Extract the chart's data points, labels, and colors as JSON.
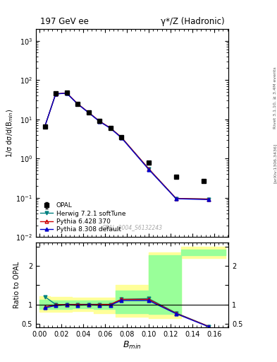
{
  "title_left": "197 GeV ee",
  "title_right": "γ*/Z (Hadronic)",
  "xlabel": "$B_{min}$",
  "ylabel_main": "1/σ dσ/d(B$_{min}$)",
  "ylabel_ratio": "Ratio to OPAL",
  "watermark": "OPAL_2004_S6132243",
  "right_label": "Rivet 3.1.10, ≥ 3.4M events",
  "right_label2": "[arXiv:1306.3436]",
  "opal_x": [
    0.005,
    0.015,
    0.025,
    0.035,
    0.045,
    0.055,
    0.065,
    0.075,
    0.1,
    0.125,
    0.15
  ],
  "opal_y": [
    6.5,
    45.0,
    47.0,
    25.0,
    15.0,
    9.0,
    6.0,
    3.5,
    0.8,
    0.35,
    0.27
  ],
  "opal_yerr": [
    0.4,
    2.0,
    2.0,
    1.5,
    0.8,
    0.5,
    0.3,
    0.2,
    0.06,
    0.03,
    0.02
  ],
  "herwig_x": [
    0.005,
    0.015,
    0.025,
    0.035,
    0.045,
    0.055,
    0.065,
    0.075,
    0.1,
    0.125,
    0.155
  ],
  "herwig_y": [
    6.5,
    44.5,
    46.5,
    25.0,
    15.0,
    9.0,
    6.0,
    3.5,
    0.55,
    0.097,
    0.093
  ],
  "pythia6_x": [
    0.005,
    0.015,
    0.025,
    0.035,
    0.045,
    0.055,
    0.065,
    0.075,
    0.1,
    0.125,
    0.155
  ],
  "pythia6_y": [
    6.5,
    44.5,
    47.0,
    25.0,
    15.0,
    9.0,
    6.0,
    3.5,
    0.55,
    0.097,
    0.093
  ],
  "pythia8_x": [
    0.005,
    0.015,
    0.025,
    0.035,
    0.045,
    0.055,
    0.065,
    0.075,
    0.1,
    0.125,
    0.155
  ],
  "pythia8_y": [
    6.5,
    44.0,
    46.5,
    24.5,
    14.8,
    8.8,
    5.9,
    3.4,
    0.53,
    0.095,
    0.09
  ],
  "ratio_x": [
    0.005,
    0.015,
    0.025,
    0.035,
    0.045,
    0.055,
    0.065,
    0.075,
    0.1,
    0.125,
    0.155
  ],
  "herwig_ratio": [
    1.2,
    1.0,
    0.99,
    1.0,
    1.0,
    1.0,
    1.0,
    1.13,
    1.15,
    0.78,
    0.43
  ],
  "pythia6_ratio": [
    0.93,
    0.99,
    1.0,
    1.0,
    1.0,
    1.0,
    1.0,
    1.13,
    1.13,
    0.77,
    0.43
  ],
  "pythia8_ratio": [
    0.91,
    0.97,
    0.99,
    0.98,
    0.99,
    0.98,
    0.98,
    1.1,
    1.1,
    0.76,
    0.42
  ],
  "band_x": [
    0.0,
    0.01,
    0.03,
    0.05,
    0.07,
    0.1,
    0.13,
    0.17
  ],
  "yellow_low": [
    0.8,
    0.8,
    0.82,
    0.78,
    0.68,
    0.65,
    2.2,
    2.2
  ],
  "yellow_hi": [
    1.22,
    1.2,
    1.18,
    1.18,
    1.5,
    2.35,
    2.5,
    2.5
  ],
  "green_low": [
    0.88,
    0.88,
    0.9,
    0.88,
    0.78,
    0.75,
    2.28,
    2.28
  ],
  "green_hi": [
    1.12,
    1.1,
    1.1,
    1.1,
    1.35,
    2.28,
    2.42,
    2.42
  ],
  "opal_color": "#000000",
  "herwig_color": "#008080",
  "py6_color": "#cc0000",
  "py8_color": "#0000cc",
  "ylim_main": [
    0.01,
    2000.0
  ],
  "ylim_ratio": [
    0.4,
    2.6
  ],
  "xlim": [
    -0.003,
    0.173
  ]
}
